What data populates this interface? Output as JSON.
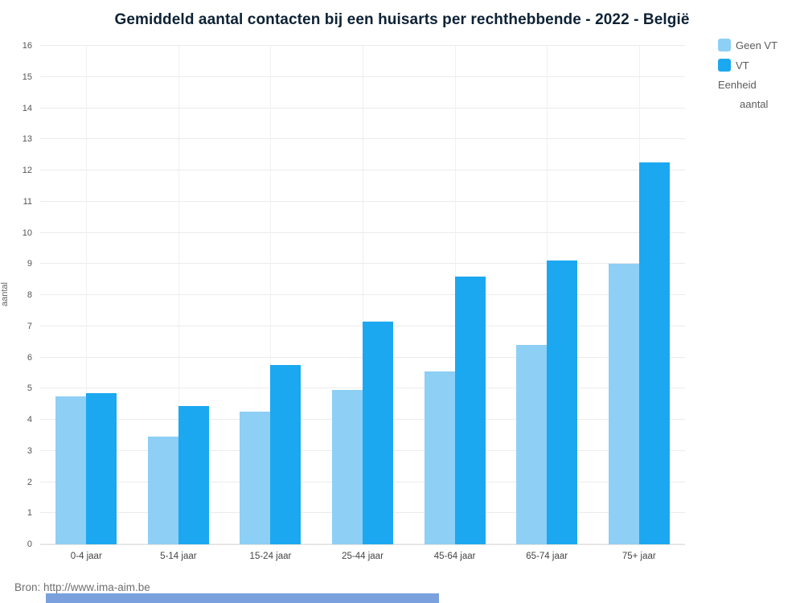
{
  "title": "Gemiddeld aantal contacten bij een huisarts per rechthebbende - 2022 - België",
  "source": "Bron: http://www.ima-aim.be",
  "legend": {
    "items": [
      {
        "label": "Geen VT",
        "color": "#8ecff5"
      },
      {
        "label": "VT",
        "color": "#1ba8f0"
      }
    ],
    "unit_label": "Eenheid",
    "unit_value": "aantal"
  },
  "colors": {
    "title": "#0d2235",
    "geen_vt": "#8ecff5",
    "vt": "#1ba8f0",
    "gridline": "#ebebeb",
    "bottom_strip": "#7aa1de"
  },
  "chart_data": {
    "type": "bar",
    "title": "Gemiddeld aantal contacten bij een huisarts per rechthebbende - 2022 - België",
    "categories": [
      "0-4 jaar",
      "5-14 jaar",
      "15-24 jaar",
      "25-44 jaar",
      "45-64 jaar",
      "65-74 jaar",
      "75+ jaar"
    ],
    "series": [
      {
        "name": "Geen VT",
        "color": "#8ecff5",
        "values": [
          4.75,
          3.45,
          4.25,
          4.95,
          5.55,
          6.4,
          9.0
        ]
      },
      {
        "name": "VT",
        "color": "#1ba8f0",
        "values": [
          4.85,
          4.45,
          5.75,
          7.15,
          8.6,
          9.1,
          12.25
        ]
      }
    ],
    "xlabel": "",
    "ylabel": "aantal",
    "ylim": [
      0,
      16
    ],
    "y_ticks": [
      0,
      1,
      2,
      3,
      4,
      5,
      6,
      7,
      8,
      9,
      10,
      11,
      12,
      13,
      14,
      15,
      16
    ],
    "grid": true,
    "legend_position": "top-right",
    "unit": "aantal"
  }
}
